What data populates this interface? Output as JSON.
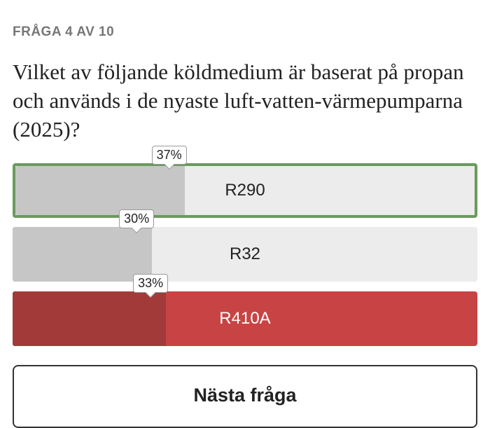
{
  "header": {
    "title": "FRÅGA 4 AV 10"
  },
  "question": {
    "text": "Vilket av följande köldmedium är baserat på propan och används i de nyaste luft-vatten-värmepumparna (2025)?"
  },
  "options": [
    {
      "label": "R290",
      "value": 37,
      "value_label": "37%",
      "state": "correct"
    },
    {
      "label": "R32",
      "value": 30,
      "value_label": "30%",
      "state": "neutral"
    },
    {
      "label": "R410A",
      "value": 33,
      "value_label": "33%",
      "state": "wrong"
    }
  ],
  "button": {
    "label": "Nästa fråga"
  }
}
